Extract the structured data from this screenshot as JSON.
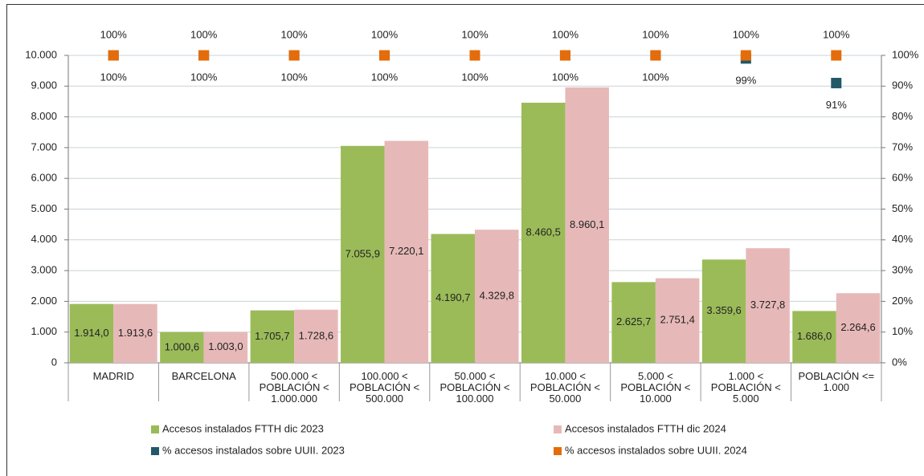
{
  "chart_data": {
    "type": "bar",
    "categories": [
      [
        "MADRID"
      ],
      [
        "BARCELONA"
      ],
      [
        "500.000 <",
        "POBLACIÓN <",
        "1.000.000"
      ],
      [
        "100.000 <",
        "POBLACIÓN <",
        "500.000"
      ],
      [
        "50.000 <",
        "POBLACIÓN <",
        "100.000"
      ],
      [
        "10.000 <",
        "POBLACIÓN <",
        "50.000"
      ],
      [
        "5.000 <",
        "POBLACIÓN <",
        "10.000"
      ],
      [
        "1.000 <",
        "POBLACIÓN <",
        "5.000"
      ],
      [
        "POBLACIÓN <=",
        "1.000"
      ]
    ],
    "series": [
      {
        "name": "Accesos instalados FTTH dic 2023",
        "color": "#9bbb59",
        "values": [
          1914.0,
          1000.6,
          1705.7,
          7055.9,
          4190.7,
          8460.5,
          2625.7,
          3359.6,
          1686.0
        ],
        "value_labels": [
          "1.914,0",
          "1.000,6",
          "1.705,7",
          "7.055,9",
          "4.190,7",
          "8.460,5",
          "2.625,7",
          "3.359,6",
          "1.686,0"
        ]
      },
      {
        "name": "Accesos instalados FTTH dic 2024",
        "color": "#e6b9b8",
        "values": [
          1913.6,
          1003.0,
          1728.6,
          7220.1,
          4329.8,
          8960.1,
          2751.4,
          3727.8,
          2264.6
        ],
        "value_labels": [
          "1.913,6",
          "1.003,0",
          "1.728,6",
          "7.220,1",
          "4.329,8",
          "8.960,1",
          "2.751,4",
          "3.727,8",
          "2.264,6"
        ]
      },
      {
        "name": "% accesos instalados sobre UUII. 2023",
        "color": "#215968",
        "label_color": "#1f3864",
        "axis": "y2",
        "values": [
          100,
          100,
          100,
          100,
          100,
          100,
          100,
          99,
          91
        ],
        "value_labels": [
          "100%",
          "100%",
          "100%",
          "100%",
          "100%",
          "100%",
          "100%",
          "99%",
          "91%"
        ]
      },
      {
        "name": "% accesos instalados sobre UUII. 2024",
        "color": "#e46c0a",
        "label_color": "#b3592a",
        "axis": "y2",
        "values": [
          100,
          100,
          100,
          100,
          100,
          100,
          100,
          100,
          100
        ],
        "value_labels": [
          "100%",
          "100%",
          "100%",
          "100%",
          "100%",
          "100%",
          "100%",
          "100%",
          "100%"
        ]
      }
    ],
    "ylim": [
      0,
      10000
    ],
    "yticks": [
      0,
      {
        "value": 1000,
        "label": "1.000"
      },
      {
        "value": 2000,
        "label": "2.000"
      },
      {
        "value": 3000,
        "label": "3.000"
      },
      {
        "value": 4000,
        "label": "4.000"
      },
      {
        "value": 5000,
        "label": "5.000"
      },
      {
        "value": 6000,
        "label": "6.000"
      },
      {
        "value": 7000,
        "label": "7.000"
      },
      {
        "value": 8000,
        "label": "8.000"
      },
      {
        "value": 9000,
        "label": "9.000"
      },
      {
        "value": 10000,
        "label": "10.000"
      }
    ],
    "y2lim": [
      0,
      100
    ],
    "y2ticks": [
      {
        "value": 0,
        "label": "0%"
      },
      {
        "value": 10,
        "label": "10%"
      },
      {
        "value": 20,
        "label": "20%"
      },
      {
        "value": 30,
        "label": "30%"
      },
      {
        "value": 40,
        "label": "40%"
      },
      {
        "value": 50,
        "label": "50%"
      },
      {
        "value": 60,
        "label": "60%"
      },
      {
        "value": 70,
        "label": "70%"
      },
      {
        "value": 80,
        "label": "80%"
      },
      {
        "value": 90,
        "label": "90%"
      },
      {
        "value": 100,
        "label": "100%"
      }
    ],
    "grid": true
  }
}
